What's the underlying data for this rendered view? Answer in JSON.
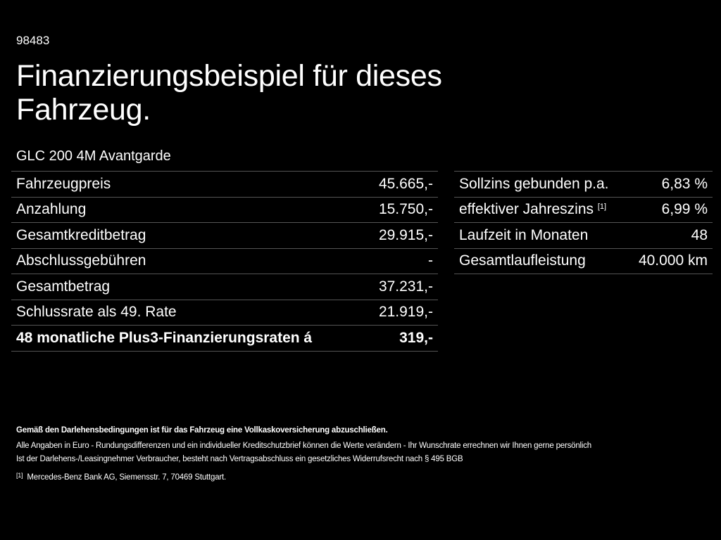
{
  "code": "98483",
  "title_line1": "Finanzierungsbeispiel für dieses",
  "title_line2": "Fahrzeug.",
  "model": "GLC 200 4M Avantgarde",
  "left_table": [
    {
      "label": "Fahrzeugpreis",
      "value": "45.665,-"
    },
    {
      "label": "Anzahlung",
      "value": "15.750,-"
    },
    {
      "label": "Gesamtkreditbetrag",
      "value": "29.915,-"
    },
    {
      "label": "Abschlussgebühren",
      "value": "-"
    },
    {
      "label": "Gesamtbetrag",
      "value": "37.231,-"
    },
    {
      "label": "Schlussrate als 49. Rate",
      "value": "21.919,-"
    },
    {
      "label": "48 monatliche Plus3-Finanzierungsraten á",
      "value": "319,-"
    }
  ],
  "right_table": [
    {
      "label": "Sollzins gebunden p.a.",
      "value": "6,83 %"
    },
    {
      "label": "effektiver Jahreszins",
      "footnote": "[1]",
      "value": "6,99 %"
    },
    {
      "label": "Laufzeit in Monaten",
      "value": "48"
    },
    {
      "label": "Gesamtlaufleistung",
      "value": "40.000 km"
    }
  ],
  "footer": {
    "insurance_note": "Gemäß den Darlehensbedingungen ist für das Fahrzeug eine Vollkaskoversicherung abzuschließen.",
    "disclaimer": "Alle Angaben in Euro - Rundungsdifferenzen und ein individueller Kreditschutzbrief können die Werte verändern - Ihr Wunschrate errechnen wir Ihnen gerne persönlich",
    "withdrawal": "Ist der Darlehens-/Leasingnehmer Verbraucher, besteht nach Vertragsabschluss ein gesetzliches Widerrufsrecht nach § 495 BGB",
    "footnote_marker": "[1]",
    "footnote_text": "Mercedes-Benz Bank AG, Siemensstr. 7, 70469 Stuttgart."
  }
}
